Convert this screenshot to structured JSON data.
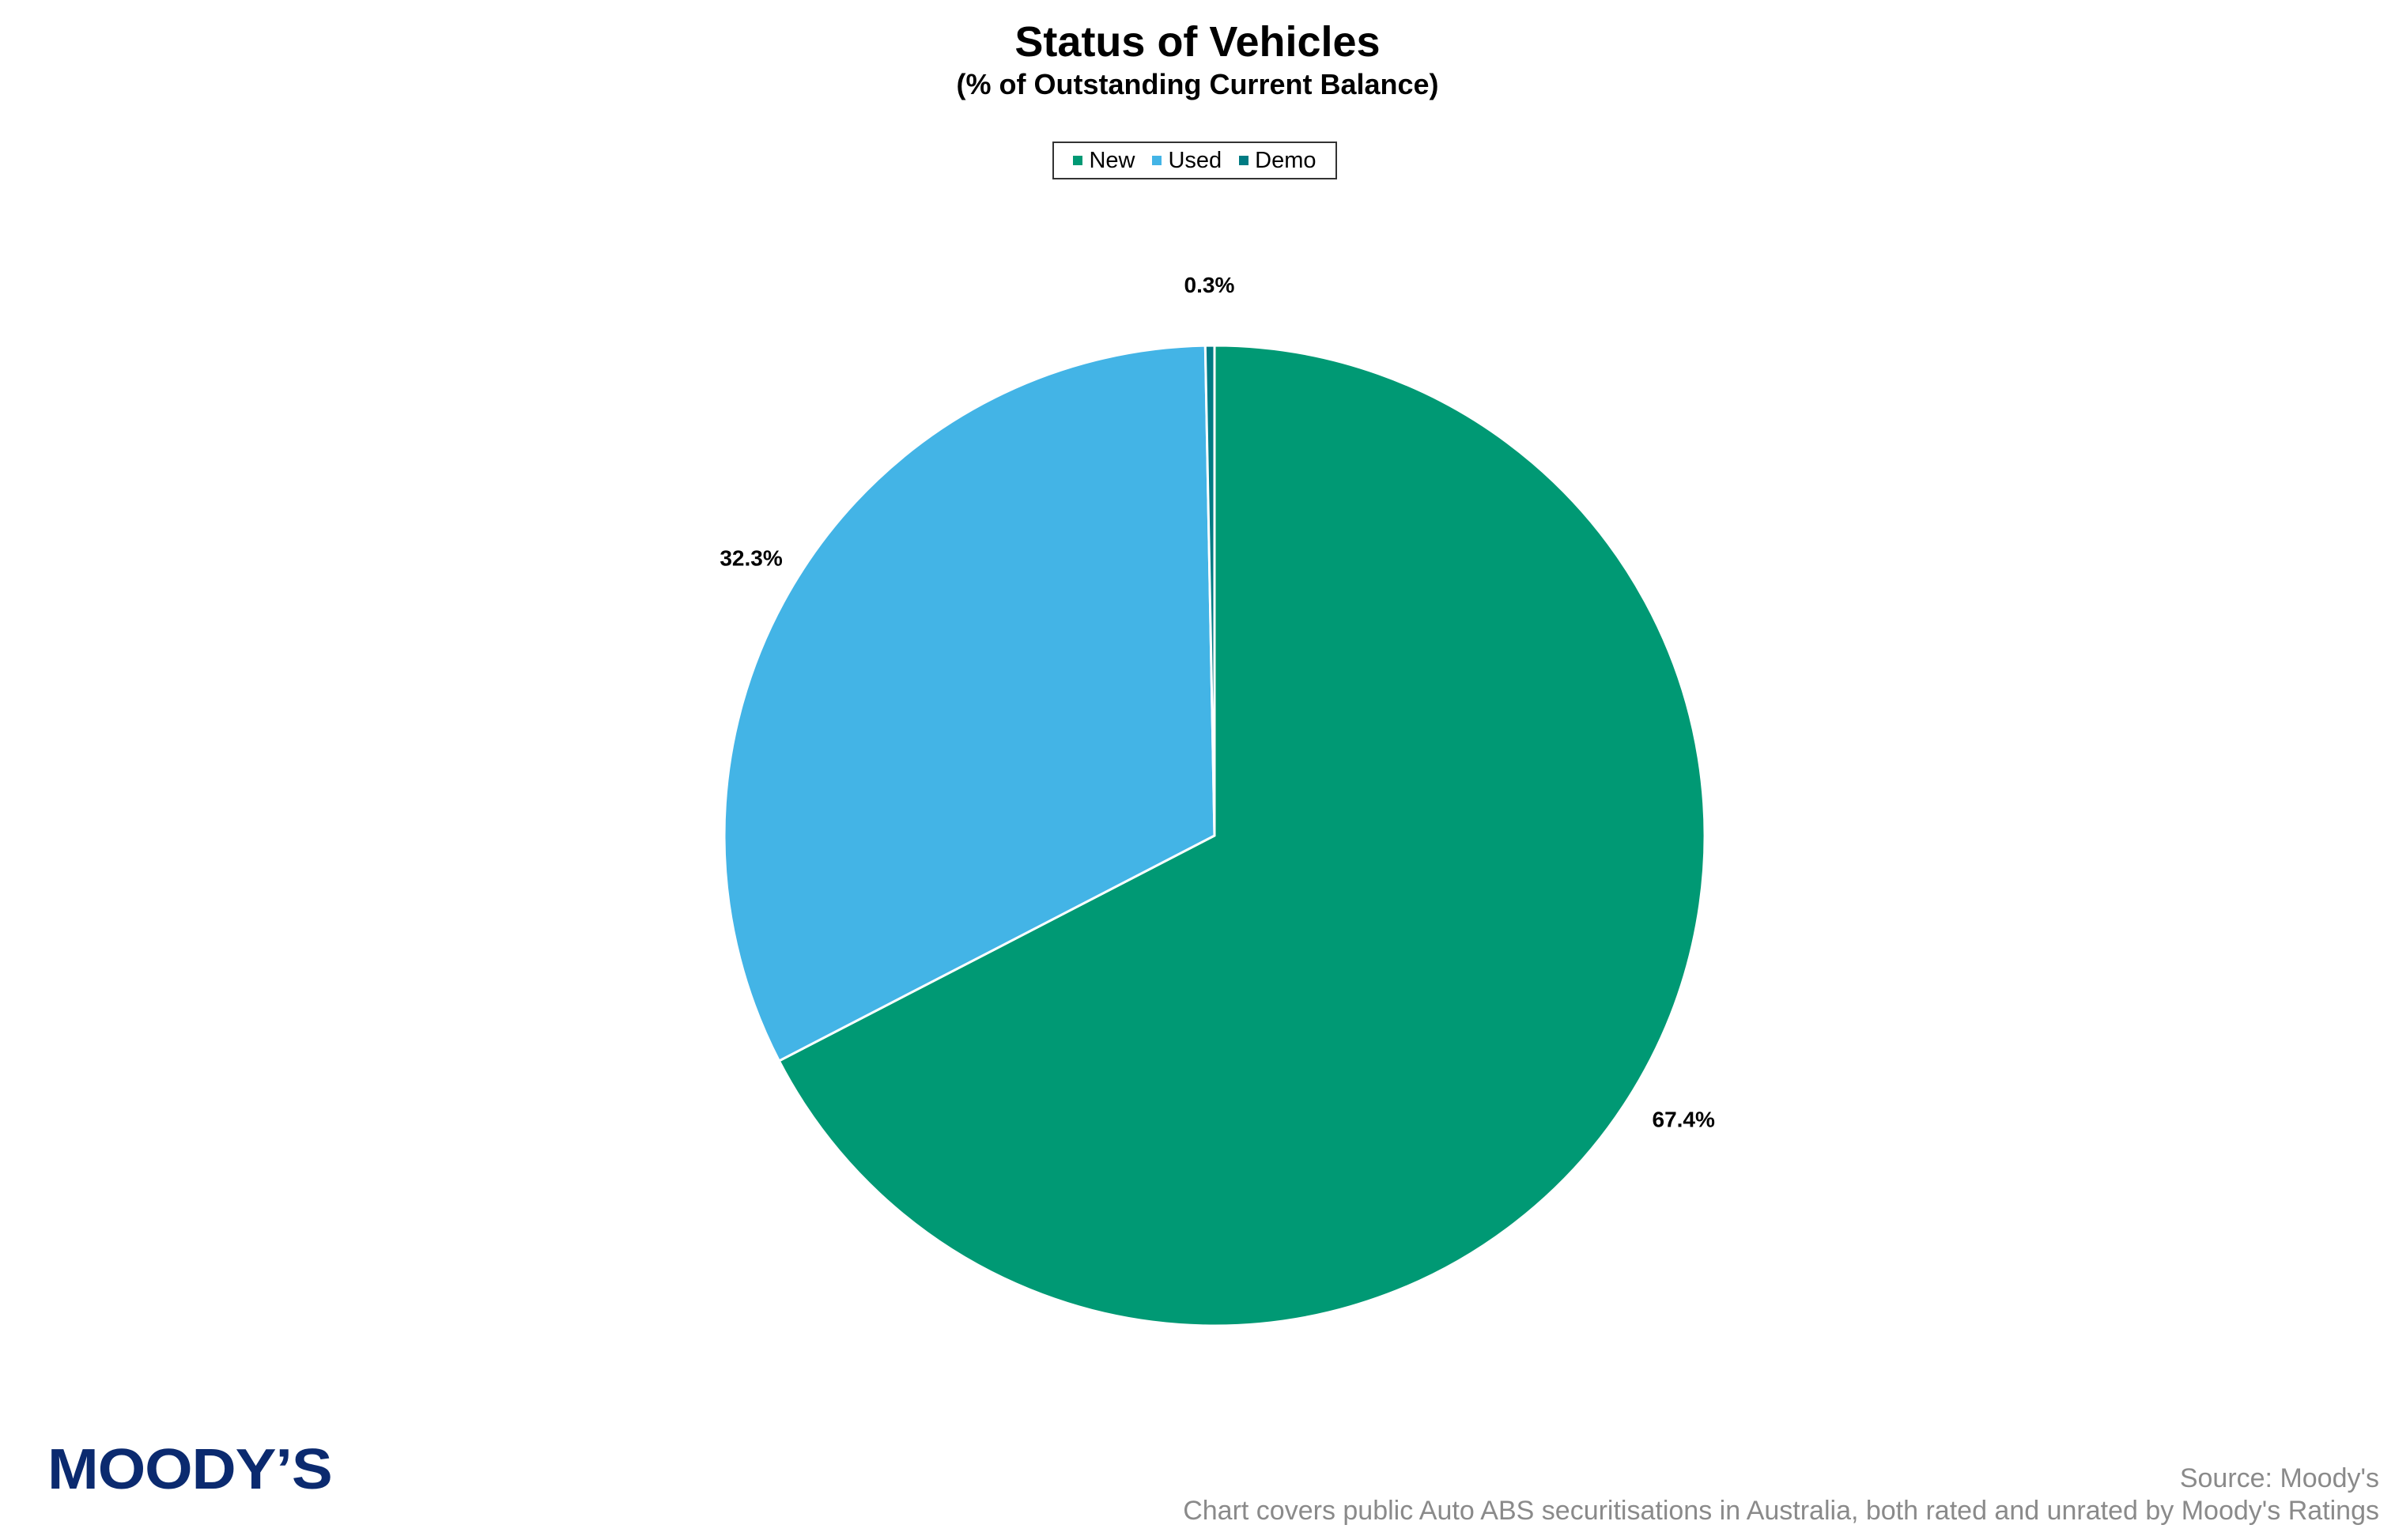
{
  "chart_data": {
    "type": "pie",
    "title": "Status of Vehicles",
    "subtitle": "(% of Outstanding Current Balance)",
    "categories": [
      "New",
      "Used",
      "Demo"
    ],
    "values": [
      67.4,
      32.3,
      0.3
    ],
    "data_labels": [
      "67.4%",
      "32.3%",
      "0.3%"
    ],
    "colors": [
      "#009974",
      "#43b4e6",
      "#007b83"
    ],
    "start": "12 o'clock",
    "direction": "clockwise",
    "legend_placement": "top-center"
  },
  "footer": {
    "logo_text": "MOODY’S",
    "source": "Source: Moody's",
    "note": "Chart covers public Auto ABS securitisations in Australia, both rated and unrated by Moody's Ratings"
  }
}
